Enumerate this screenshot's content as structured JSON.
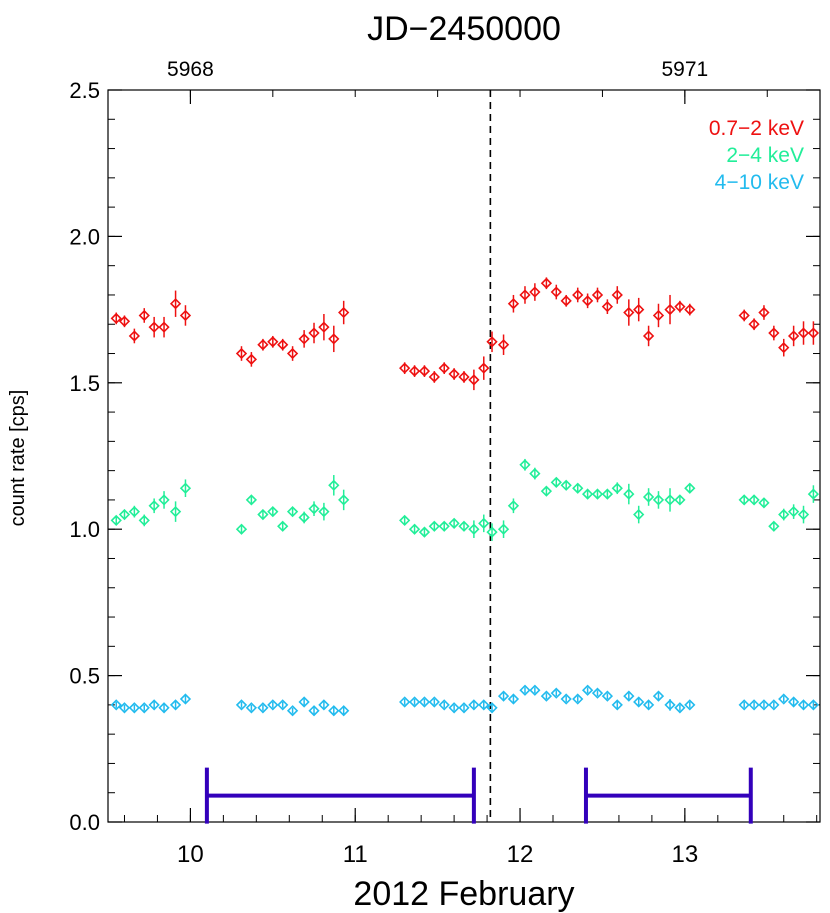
{
  "chart_data": {
    "type": "scatter",
    "title": "JD−2450000",
    "xlabel": "2012 February",
    "ylabel": "count rate [cps]",
    "xlim": [
      9.5,
      13.82
    ],
    "ylim": [
      0.0,
      2.5
    ],
    "x_ticks": [
      "10",
      "11",
      "12",
      "13"
    ],
    "y_ticks": [
      "0.0",
      "0.5",
      "1.0",
      "1.5",
      "2.0",
      "2.5"
    ],
    "top_axis_ticks": [
      {
        "label": "5968",
        "x": 10.0
      },
      {
        "label": "5971",
        "x": 13.0
      }
    ],
    "legend_position": "top-right",
    "marker": "open diamond with error bars",
    "vertical_line": {
      "x": 11.82,
      "style": "dashed",
      "color": "#000000"
    },
    "intervals": [
      {
        "start": 10.1,
        "end": 11.72,
        "y": 0.09,
        "color": "#3300bb"
      },
      {
        "start": 12.4,
        "end": 13.4,
        "y": 0.09,
        "color": "#3300bb"
      }
    ],
    "series": [
      {
        "name": "0.7−2 keV",
        "color": "#ee1111",
        "x": [
          9.55,
          9.6,
          9.66,
          9.72,
          9.78,
          9.84,
          9.91,
          9.97,
          10.31,
          10.37,
          10.44,
          10.5,
          10.56,
          10.62,
          10.69,
          10.75,
          10.81,
          10.87,
          10.93,
          11.3,
          11.36,
          11.42,
          11.48,
          11.54,
          11.6,
          11.66,
          11.72,
          11.78,
          11.83,
          11.9,
          11.96,
          12.03,
          12.09,
          12.16,
          12.22,
          12.28,
          12.35,
          12.41,
          12.47,
          12.53,
          12.59,
          12.66,
          12.72,
          12.78,
          12.84,
          12.91,
          12.97,
          13.03,
          13.36,
          13.42,
          13.48,
          13.54,
          13.6,
          13.66,
          13.72,
          13.78
        ],
        "y": [
          1.72,
          1.71,
          1.66,
          1.73,
          1.69,
          1.69,
          1.77,
          1.73,
          1.6,
          1.58,
          1.63,
          1.64,
          1.63,
          1.6,
          1.65,
          1.67,
          1.69,
          1.65,
          1.74,
          1.55,
          1.54,
          1.54,
          1.52,
          1.55,
          1.53,
          1.52,
          1.51,
          1.55,
          1.64,
          1.63,
          1.77,
          1.8,
          1.81,
          1.84,
          1.81,
          1.78,
          1.8,
          1.78,
          1.8,
          1.76,
          1.8,
          1.74,
          1.75,
          1.66,
          1.73,
          1.75,
          1.76,
          1.75,
          1.73,
          1.7,
          1.74,
          1.67,
          1.62,
          1.66,
          1.67,
          1.67
        ],
        "err": [
          0.02,
          0.02,
          0.025,
          0.025,
          0.035,
          0.035,
          0.045,
          0.035,
          0.025,
          0.025,
          0.02,
          0.02,
          0.02,
          0.025,
          0.03,
          0.035,
          0.045,
          0.045,
          0.04,
          0.02,
          0.02,
          0.02,
          0.02,
          0.02,
          0.02,
          0.02,
          0.035,
          0.04,
          0.035,
          0.035,
          0.03,
          0.03,
          0.03,
          0.02,
          0.025,
          0.02,
          0.025,
          0.025,
          0.025,
          0.025,
          0.03,
          0.045,
          0.04,
          0.035,
          0.04,
          0.05,
          0.02,
          0.02,
          0.02,
          0.02,
          0.025,
          0.025,
          0.03,
          0.035,
          0.04,
          0.04
        ]
      },
      {
        "name": "2−4 keV",
        "color": "#22ee99",
        "x": [
          9.55,
          9.6,
          9.66,
          9.72,
          9.78,
          9.84,
          9.91,
          9.97,
          10.31,
          10.37,
          10.44,
          10.5,
          10.56,
          10.62,
          10.69,
          10.75,
          10.81,
          10.87,
          10.93,
          11.3,
          11.36,
          11.42,
          11.48,
          11.54,
          11.6,
          11.66,
          11.72,
          11.78,
          11.83,
          11.9,
          11.96,
          12.03,
          12.09,
          12.16,
          12.22,
          12.28,
          12.35,
          12.41,
          12.47,
          12.53,
          12.59,
          12.66,
          12.72,
          12.78,
          12.84,
          12.91,
          12.97,
          13.03,
          13.36,
          13.42,
          13.48,
          13.54,
          13.6,
          13.66,
          13.72,
          13.78
        ],
        "y": [
          1.03,
          1.05,
          1.06,
          1.03,
          1.08,
          1.1,
          1.06,
          1.14,
          1.0,
          1.1,
          1.05,
          1.06,
          1.01,
          1.06,
          1.04,
          1.07,
          1.06,
          1.15,
          1.1,
          1.03,
          1.0,
          0.99,
          1.01,
          1.01,
          1.02,
          1.01,
          1.0,
          1.02,
          0.99,
          1.0,
          1.08,
          1.22,
          1.19,
          1.13,
          1.16,
          1.15,
          1.14,
          1.12,
          1.12,
          1.12,
          1.14,
          1.12,
          1.05,
          1.11,
          1.1,
          1.1,
          1.1,
          1.14,
          1.1,
          1.1,
          1.09,
          1.01,
          1.05,
          1.06,
          1.05,
          1.12
        ],
        "err": [
          0.015,
          0.015,
          0.02,
          0.02,
          0.025,
          0.03,
          0.035,
          0.03,
          0.015,
          0.015,
          0.015,
          0.015,
          0.015,
          0.015,
          0.02,
          0.025,
          0.03,
          0.035,
          0.035,
          0.015,
          0.015,
          0.015,
          0.015,
          0.015,
          0.015,
          0.015,
          0.03,
          0.03,
          0.03,
          0.03,
          0.025,
          0.02,
          0.02,
          0.015,
          0.015,
          0.015,
          0.015,
          0.015,
          0.015,
          0.015,
          0.02,
          0.035,
          0.03,
          0.03,
          0.03,
          0.04,
          0.015,
          0.015,
          0.015,
          0.015,
          0.015,
          0.015,
          0.02,
          0.025,
          0.03,
          0.03
        ]
      },
      {
        "name": "4−10 keV",
        "color": "#22bbee",
        "x": [
          9.55,
          9.6,
          9.66,
          9.72,
          9.78,
          9.84,
          9.91,
          9.97,
          10.31,
          10.37,
          10.44,
          10.5,
          10.56,
          10.62,
          10.69,
          10.75,
          10.81,
          10.87,
          10.93,
          11.3,
          11.36,
          11.42,
          11.48,
          11.54,
          11.6,
          11.66,
          11.72,
          11.78,
          11.83,
          11.9,
          11.96,
          12.03,
          12.09,
          12.16,
          12.22,
          12.28,
          12.35,
          12.41,
          12.47,
          12.53,
          12.59,
          12.66,
          12.72,
          12.78,
          12.84,
          12.91,
          12.97,
          13.03,
          13.36,
          13.42,
          13.48,
          13.54,
          13.6,
          13.66,
          13.72,
          13.78
        ],
        "y": [
          0.4,
          0.39,
          0.39,
          0.39,
          0.4,
          0.39,
          0.4,
          0.42,
          0.4,
          0.39,
          0.39,
          0.4,
          0.4,
          0.38,
          0.41,
          0.38,
          0.4,
          0.38,
          0.38,
          0.41,
          0.41,
          0.41,
          0.41,
          0.4,
          0.39,
          0.39,
          0.4,
          0.4,
          0.39,
          0.43,
          0.42,
          0.45,
          0.45,
          0.43,
          0.44,
          0.42,
          0.42,
          0.45,
          0.44,
          0.43,
          0.4,
          0.43,
          0.41,
          0.4,
          0.43,
          0.4,
          0.39,
          0.4,
          0.4,
          0.4,
          0.4,
          0.4,
          0.42,
          0.41,
          0.4,
          0.4
        ],
        "err": [
          0.01,
          0.01,
          0.01,
          0.01,
          0.012,
          0.012,
          0.015,
          0.012,
          0.01,
          0.01,
          0.01,
          0.01,
          0.01,
          0.01,
          0.012,
          0.012,
          0.015,
          0.015,
          0.015,
          0.01,
          0.01,
          0.01,
          0.01,
          0.01,
          0.01,
          0.01,
          0.012,
          0.012,
          0.012,
          0.012,
          0.012,
          0.01,
          0.01,
          0.01,
          0.01,
          0.01,
          0.01,
          0.01,
          0.01,
          0.01,
          0.012,
          0.015,
          0.015,
          0.015,
          0.015,
          0.02,
          0.01,
          0.01,
          0.01,
          0.01,
          0.01,
          0.01,
          0.01,
          0.012,
          0.015,
          0.015
        ]
      }
    ]
  }
}
